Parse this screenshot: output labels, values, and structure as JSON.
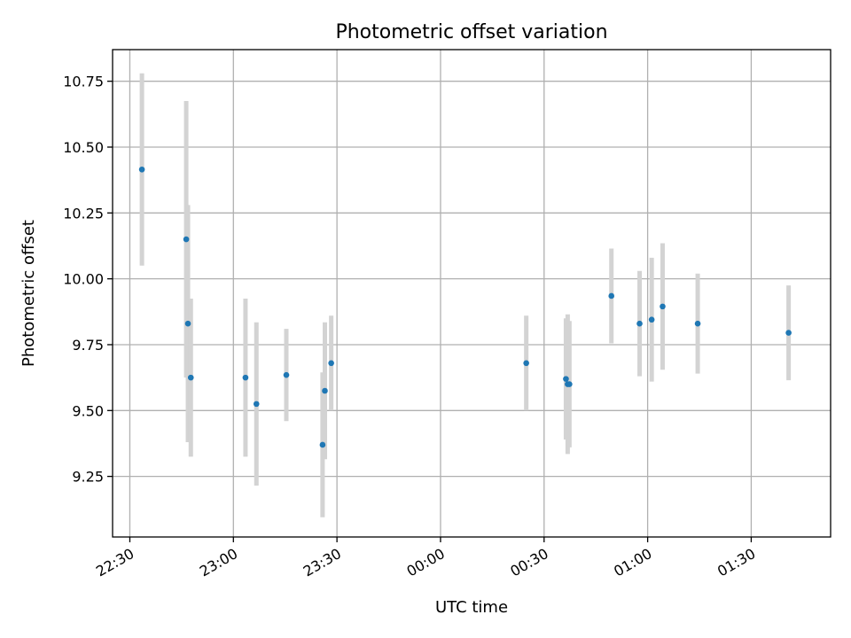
{
  "chart_data": {
    "type": "scatter",
    "title": "Photometric offset variation",
    "xlabel": "UTC time",
    "ylabel": "Photometric offset",
    "x_axis_type": "time",
    "xlim": [
      "22:25",
      "01:53"
    ],
    "ylim": [
      9.02,
      10.87
    ],
    "x_ticks": [
      {
        "value": "22:30",
        "label": "22:30"
      },
      {
        "value": "23:00",
        "label": "23:00"
      },
      {
        "value": "23:30",
        "label": "23:30"
      },
      {
        "value": "00:00",
        "label": "00:00"
      },
      {
        "value": "00:30",
        "label": "00:30"
      },
      {
        "value": "01:00",
        "label": "01:00"
      },
      {
        "value": "01:30",
        "label": "01:30"
      }
    ],
    "y_ticks": [
      {
        "value": 9.25,
        "label": "9.25"
      },
      {
        "value": 9.5,
        "label": "9.50"
      },
      {
        "value": 9.75,
        "label": "9.75"
      },
      {
        "value": 10.0,
        "label": "10.00"
      },
      {
        "value": 10.25,
        "label": "10.25"
      },
      {
        "value": 10.5,
        "label": "10.50"
      },
      {
        "value": 10.75,
        "label": "10.75"
      }
    ],
    "grid": true,
    "marker_color": "#1f77b4",
    "errorbar_color": "#d3d3d3",
    "points": [
      {
        "time": "22:33:30",
        "y": 10.415,
        "err": 0.365
      },
      {
        "time": "22:46:20",
        "y": 10.15,
        "err": 0.525
      },
      {
        "time": "22:46:50",
        "y": 9.83,
        "err": 0.45
      },
      {
        "time": "22:47:40",
        "y": 9.625,
        "err": 0.3
      },
      {
        "time": "23:03:30",
        "y": 9.625,
        "err": 0.3
      },
      {
        "time": "23:06:40",
        "y": 9.525,
        "err": 0.31
      },
      {
        "time": "23:15:20",
        "y": 9.635,
        "err": 0.175
      },
      {
        "time": "23:25:50",
        "y": 9.37,
        "err": 0.275
      },
      {
        "time": "23:26:30",
        "y": 9.575,
        "err": 0.26
      },
      {
        "time": "23:28:20",
        "y": 9.68,
        "err": 0.18
      },
      {
        "time": "00:24:50",
        "y": 9.68,
        "err": 0.18
      },
      {
        "time": "00:36:20",
        "y": 9.62,
        "err": 0.23
      },
      {
        "time": "00:36:50",
        "y": 9.6,
        "err": 0.265
      },
      {
        "time": "00:37:20",
        "y": 9.6,
        "err": 0.24
      },
      {
        "time": "00:49:30",
        "y": 9.935,
        "err": 0.18
      },
      {
        "time": "00:57:40",
        "y": 9.83,
        "err": 0.2
      },
      {
        "time": "01:01:10",
        "y": 9.845,
        "err": 0.235
      },
      {
        "time": "01:04:20",
        "y": 9.895,
        "err": 0.24
      },
      {
        "time": "01:14:30",
        "y": 9.83,
        "err": 0.19
      },
      {
        "time": "01:40:50",
        "y": 9.795,
        "err": 0.18
      }
    ]
  }
}
